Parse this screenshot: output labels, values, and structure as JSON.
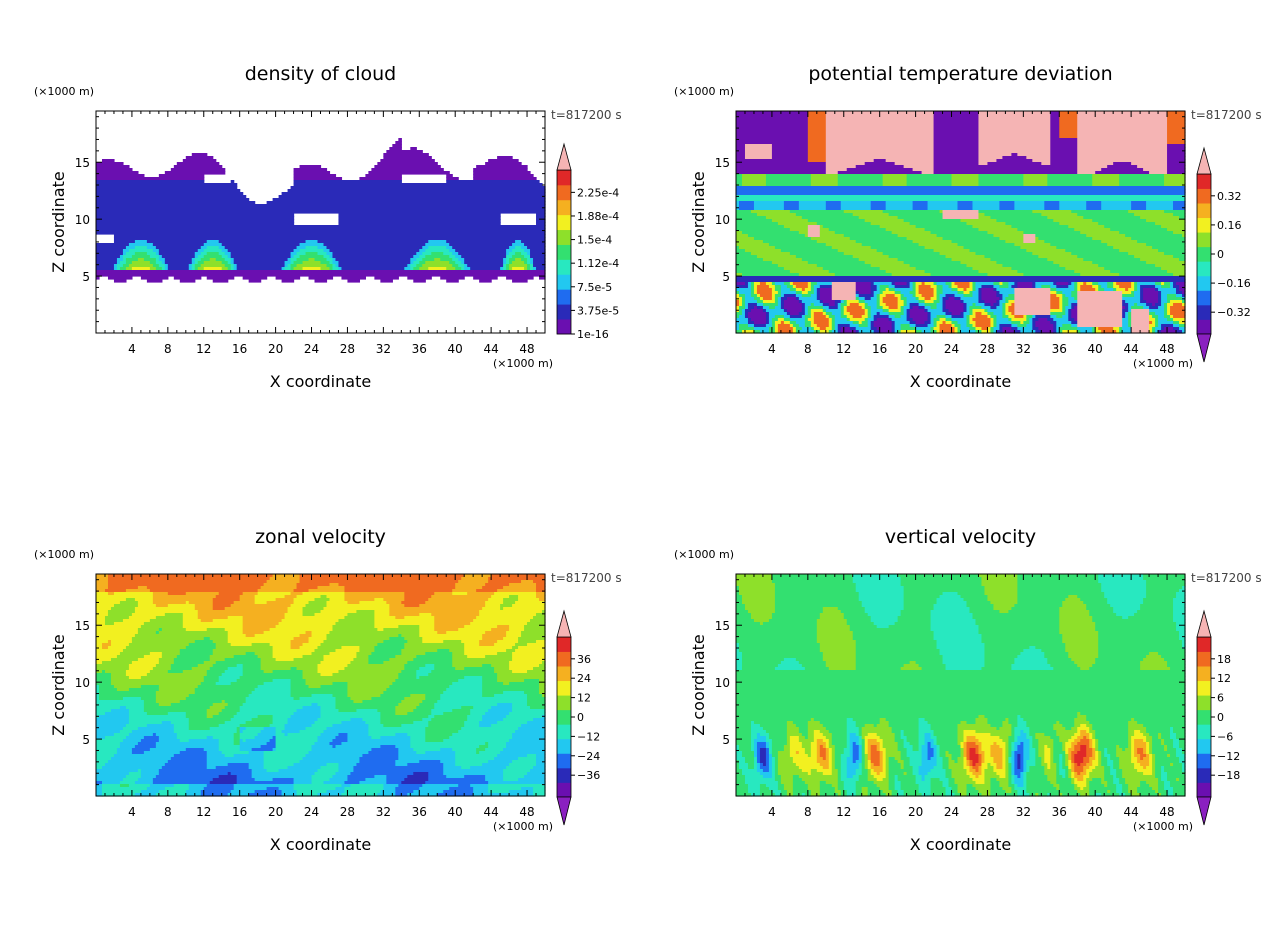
{
  "panels": [
    {
      "title": "density of cloud",
      "ylabel": "Z coordinate",
      "xlabel": "X coordinate",
      "xunit": "(×1000 m)",
      "yunit": "(×1000 m)",
      "time": "t=817200 s",
      "colorbar_labels": [
        "2.25e-4",
        "1.88e-4",
        "1.5e-4",
        "1.12e-4",
        "7.5e-5",
        "3.75e-5",
        "1e-16"
      ],
      "colorbar_ticks": [
        0.000225,
        0.000188,
        0.00015,
        0.000112,
        7.5e-05,
        3.75e-05,
        1e-16
      ]
    },
    {
      "title": "potential temperature deviation",
      "ylabel": "Z coordinate",
      "xlabel": "X coordinate",
      "xunit": "(×1000 m)",
      "yunit": "(×1000 m)",
      "time": "t=817200 s",
      "colorbar_labels": [
        "0.32",
        "0.16",
        "0",
        "−0.16",
        "−0.32"
      ],
      "colorbar_ticks": [
        0.32,
        0.16,
        0,
        -0.16,
        -0.32
      ]
    },
    {
      "title": "zonal velocity",
      "ylabel": "Z coordinate",
      "xlabel": "X coordinate",
      "xunit": "(×1000 m)",
      "yunit": "(×1000 m)",
      "time": "t=817200 s",
      "colorbar_labels": [
        "36",
        "24",
        "12",
        "0",
        "−12",
        "−24",
        "−36"
      ],
      "colorbar_ticks": [
        36,
        24,
        12,
        0,
        -12,
        -24,
        -36
      ]
    },
    {
      "title": "vertical velocity",
      "ylabel": "Z coordinate",
      "xlabel": "X coordinate",
      "xunit": "(×1000 m)",
      "yunit": "(×1000 m)",
      "time": "t=817200 s",
      "colorbar_labels": [
        "18",
        "12",
        "6",
        "0",
        "−6",
        "−12",
        "−18"
      ],
      "colorbar_ticks": [
        18,
        12,
        6,
        0,
        -6,
        -12,
        -18
      ]
    }
  ],
  "palette": [
    "#6a0fb0",
    "#2a2ab8",
    "#1f6cf0",
    "#22c8f0",
    "#28e8c0",
    "#33e070",
    "#8ee02a",
    "#f2f020",
    "#f5b020",
    "#f06a20",
    "#e02828",
    "#f5b4b4"
  ],
  "chart_data": [
    {
      "type": "heatmap",
      "title": "density of cloud",
      "xlabel": "X coordinate",
      "ylabel": "Z coordinate",
      "x_ticks": [
        4,
        8,
        12,
        16,
        20,
        24,
        28,
        32,
        36,
        40,
        44,
        48
      ],
      "y_ticks": [
        5,
        10,
        15
      ],
      "xlim": [
        0,
        50
      ],
      "ylim": [
        0,
        19.5
      ],
      "colorbar": [
        0.000225,
        0.000188,
        0.00015,
        0.000112,
        7.5e-05,
        3.75e-05,
        1e-16
      ],
      "time": "t=817200 s",
      "features": [
        {
          "type": "cloud_layer",
          "z_min": 4.6,
          "z_max": 16.5,
          "x_range": [
            0,
            50
          ]
        }
      ]
    },
    {
      "type": "heatmap",
      "title": "potential temperature deviation",
      "xlabel": "X coordinate",
      "ylabel": "Z coordinate",
      "x_ticks": [
        4,
        8,
        12,
        16,
        20,
        24,
        28,
        32,
        36,
        40,
        44,
        48
      ],
      "y_ticks": [
        5,
        10,
        15
      ],
      "xlim": [
        0,
        50
      ],
      "ylim": [
        0,
        19.5
      ],
      "colorbar": [
        0.32,
        0.16,
        0,
        -0.16,
        -0.32
      ],
      "time": "t=817200 s"
    },
    {
      "type": "heatmap",
      "title": "zonal velocity",
      "xlabel": "X coordinate",
      "ylabel": "Z coordinate",
      "x_ticks": [
        4,
        8,
        12,
        16,
        20,
        24,
        28,
        32,
        36,
        40,
        44,
        48
      ],
      "y_ticks": [
        5,
        10,
        15
      ],
      "xlim": [
        0,
        50
      ],
      "ylim": [
        0,
        19.5
      ],
      "colorbar": [
        36,
        24,
        12,
        0,
        -12,
        -24,
        -36
      ],
      "time": "t=817200 s"
    },
    {
      "type": "heatmap",
      "title": "vertical velocity",
      "xlabel": "X coordinate",
      "ylabel": "Z coordinate",
      "x_ticks": [
        4,
        8,
        12,
        16,
        20,
        24,
        28,
        32,
        36,
        40,
        44,
        48
      ],
      "y_ticks": [
        5,
        10,
        15
      ],
      "xlim": [
        0,
        50
      ],
      "ylim": [
        0,
        19.5
      ],
      "colorbar": [
        18,
        12,
        6,
        0,
        -6,
        -12,
        -18
      ],
      "time": "t=817200 s"
    }
  ]
}
